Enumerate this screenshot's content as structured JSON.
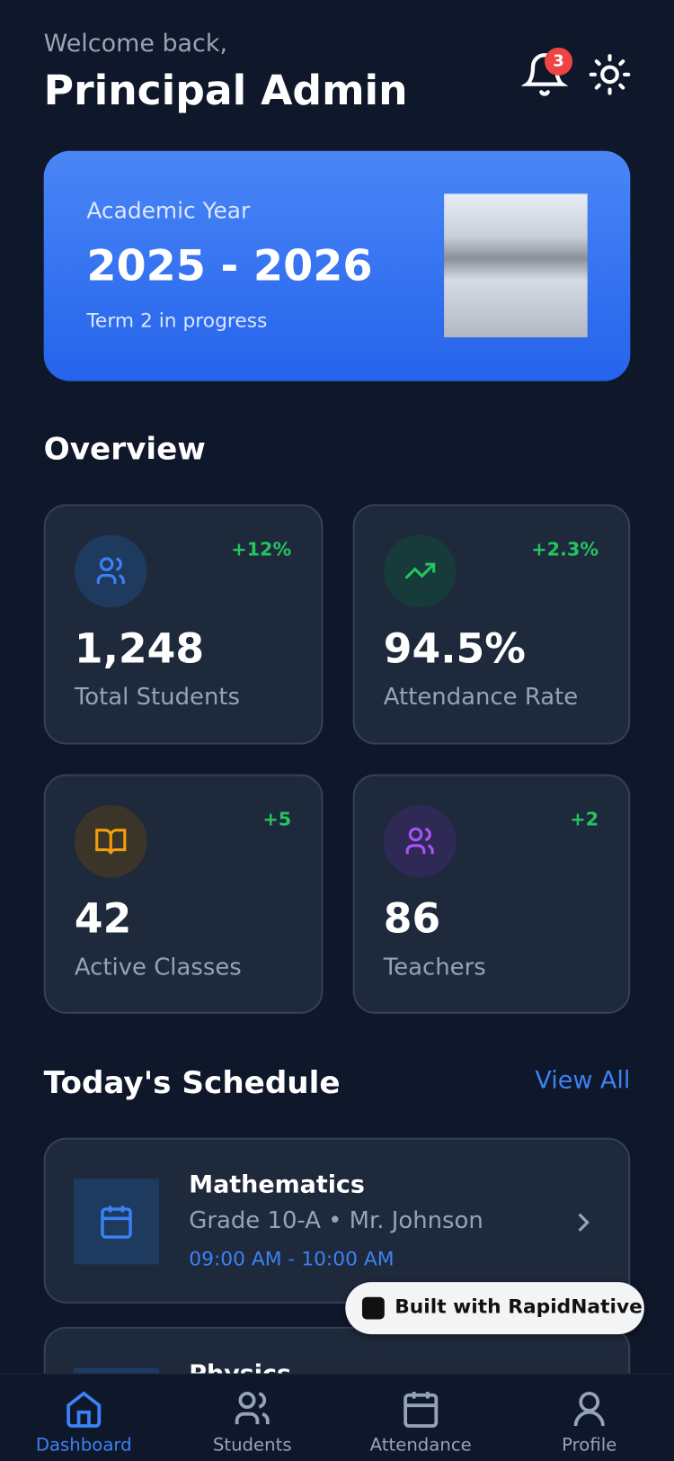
{
  "header": {
    "greeting": "Welcome back,",
    "name": "Principal Admin",
    "notification_count": "3"
  },
  "banner": {
    "label": "Academic Year",
    "year": "2025 - 2026",
    "subtitle": "Term 2 in progress"
  },
  "overview": {
    "title": "Overview",
    "stats": [
      {
        "value": "1,248",
        "label": "Total Students",
        "change": "+12%"
      },
      {
        "value": "94.5%",
        "label": "Attendance Rate",
        "change": "+2.3%"
      },
      {
        "value": "42",
        "label": "Active Classes",
        "change": "+5"
      },
      {
        "value": "86",
        "label": "Teachers",
        "change": "+2"
      }
    ]
  },
  "schedule": {
    "title": "Today's Schedule",
    "view_all": "View All",
    "items": [
      {
        "subject": "Mathematics",
        "details": "Grade 10-A • Mr. Johnson",
        "time": "09:00 AM - 10:00 AM"
      },
      {
        "subject": "Physics"
      }
    ]
  },
  "badge": "Built with RapidNative",
  "nav": [
    "Dashboard",
    "Students",
    "Attendance",
    "Profile"
  ]
}
